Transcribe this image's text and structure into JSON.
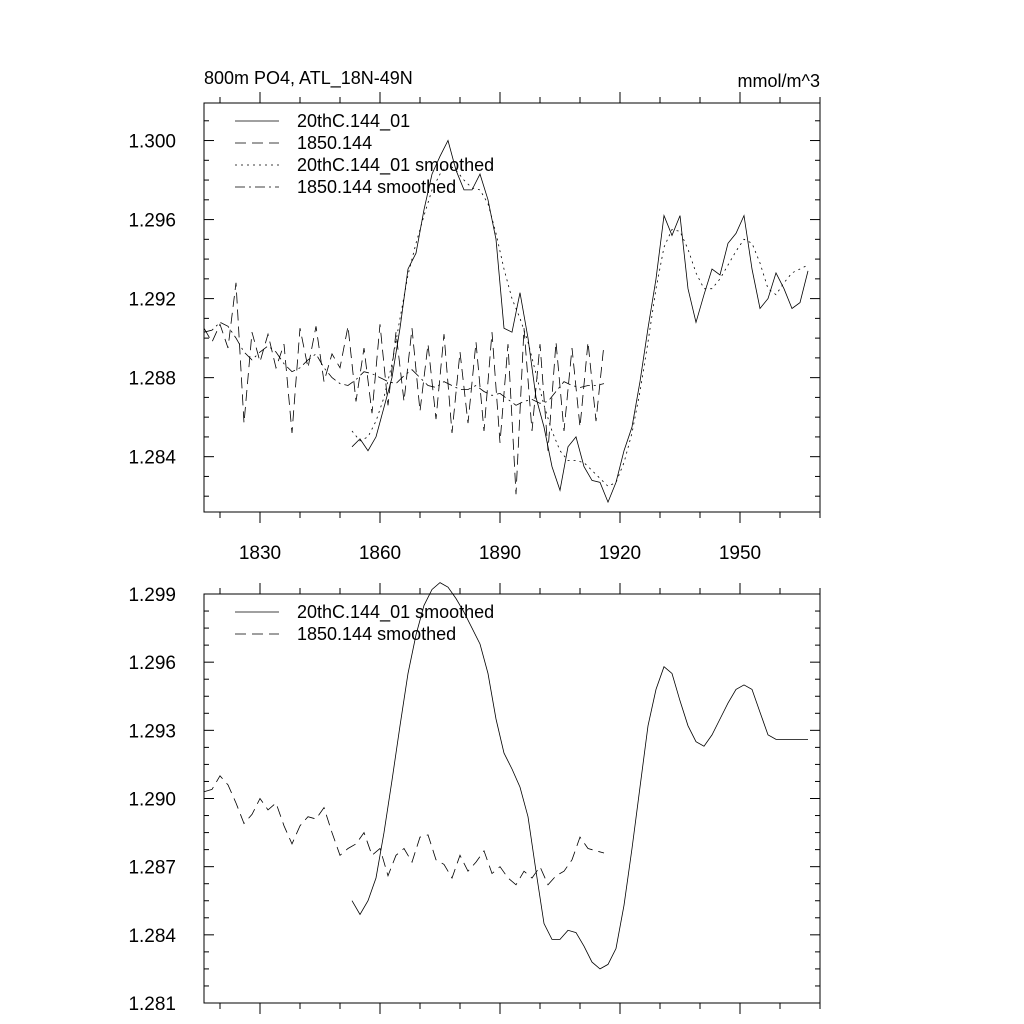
{
  "chart_data": [
    {
      "type": "line",
      "title": "800m PO4, ATL_18N-49N",
      "units": "mmol/m^3",
      "xlim": [
        1816,
        1970
      ],
      "ylim": [
        1.2812,
        1.3019
      ],
      "x_ticks": [
        1830,
        1860,
        1890,
        1920,
        1950
      ],
      "x_tick_labels": [
        "1830",
        "1860",
        "1890",
        "1920",
        "1950"
      ],
      "y_ticks": [
        1.284,
        1.288,
        1.292,
        1.296,
        1.3
      ],
      "y_tick_labels": [
        "1.284",
        "1.288",
        "1.292",
        "1.296",
        "1.300"
      ],
      "legend_position": "top-left",
      "series": [
        {
          "name": "20thC.144_01",
          "style": "solid",
          "x": [
            1853,
            1855,
            1857,
            1859,
            1861,
            1863,
            1865,
            1867,
            1869,
            1871,
            1873,
            1875,
            1877,
            1879,
            1881,
            1883,
            1885,
            1887,
            1889,
            1891,
            1893,
            1895,
            1897,
            1899,
            1901,
            1903,
            1905,
            1907,
            1909,
            1911,
            1913,
            1915,
            1917,
            1919,
            1921,
            1923,
            1925,
            1927,
            1929,
            1931,
            1933,
            1935,
            1937,
            1939,
            1941,
            1943,
            1945,
            1947,
            1949,
            1951,
            1953,
            1955,
            1957,
            1959,
            1961,
            1963,
            1965,
            1967
          ],
          "y": [
            1.2845,
            1.2849,
            1.2843,
            1.285,
            1.2865,
            1.288,
            1.2905,
            1.2935,
            1.2943,
            1.2965,
            1.2983,
            1.2992,
            1.3,
            1.2985,
            1.2975,
            1.2975,
            1.2983,
            1.297,
            1.295,
            1.2905,
            1.2903,
            1.2923,
            1.29,
            1.287,
            1.2855,
            1.2835,
            1.2823,
            1.2845,
            1.285,
            1.2835,
            1.2828,
            1.2827,
            1.2817,
            1.2827,
            1.2843,
            1.2855,
            1.2878,
            1.2905,
            1.293,
            1.2962,
            1.2952,
            1.2962,
            1.2925,
            1.2908,
            1.2922,
            1.2935,
            1.2932,
            1.2948,
            1.2953,
            1.2962,
            1.2935,
            1.2915,
            1.292,
            1.2933,
            1.2925,
            1.2915,
            1.2918,
            1.2934
          ]
        },
        {
          "name": "1850.144",
          "style": "dashed",
          "x": [
            1816,
            1818,
            1820,
            1822,
            1824,
            1826,
            1828,
            1830,
            1832,
            1834,
            1836,
            1838,
            1840,
            1842,
            1844,
            1846,
            1848,
            1850,
            1852,
            1854,
            1856,
            1858,
            1860,
            1862,
            1864,
            1866,
            1868,
            1870,
            1872,
            1874,
            1876,
            1878,
            1880,
            1882,
            1884,
            1886,
            1888,
            1890,
            1892,
            1894,
            1896,
            1898,
            1900,
            1902,
            1904,
            1906,
            1908,
            1910,
            1912,
            1914,
            1916
          ],
          "y": [
            1.2905,
            1.2898,
            1.2907,
            1.2895,
            1.2928,
            1.2857,
            1.2903,
            1.2888,
            1.2902,
            1.2885,
            1.2897,
            1.2852,
            1.2905,
            1.2885,
            1.2906,
            1.2878,
            1.2892,
            1.2885,
            1.2906,
            1.2868,
            1.2895,
            1.2862,
            1.2907,
            1.2866,
            1.2903,
            1.2868,
            1.2905,
            1.2863,
            1.2897,
            1.2859,
            1.2902,
            1.2852,
            1.2893,
            1.2857,
            1.2898,
            1.2853,
            1.2903,
            1.2847,
            1.2897,
            1.2821,
            1.2905,
            1.2853,
            1.2897,
            1.2843,
            1.2898,
            1.2853,
            1.2895,
            1.2855,
            1.2898,
            1.2858,
            1.2897
          ]
        },
        {
          "name": "20thC.144_01 smoothed",
          "style": "dotted",
          "x": [
            1853,
            1855,
            1857,
            1859,
            1861,
            1863,
            1865,
            1867,
            1869,
            1871,
            1873,
            1875,
            1877,
            1879,
            1881,
            1883,
            1885,
            1887,
            1889,
            1891,
            1893,
            1895,
            1897,
            1899,
            1901,
            1903,
            1905,
            1907,
            1909,
            1911,
            1913,
            1915,
            1917,
            1919,
            1921,
            1923,
            1925,
            1927,
            1929,
            1931,
            1933,
            1935,
            1937,
            1939,
            1941,
            1943,
            1945,
            1947,
            1949,
            1951,
            1953,
            1955,
            1957,
            1959,
            1961,
            1963,
            1965,
            1967
          ],
          "y": [
            1.2853,
            1.2848,
            1.285,
            1.2858,
            1.287,
            1.2887,
            1.291,
            1.2932,
            1.2948,
            1.2962,
            1.2975,
            1.2983,
            1.2988,
            1.2985,
            1.298,
            1.2976,
            1.2975,
            1.2968,
            1.2953,
            1.2935,
            1.292,
            1.291,
            1.2898,
            1.2882,
            1.2866,
            1.2853,
            1.2843,
            1.2838,
            1.2838,
            1.2837,
            1.2833,
            1.2829,
            1.2825,
            1.2827,
            1.2837,
            1.2852,
            1.2873,
            1.2898,
            1.2925,
            1.2946,
            1.2955,
            1.2954,
            1.2945,
            1.2933,
            1.2925,
            1.2925,
            1.293,
            1.2937,
            1.2944,
            1.295,
            1.2948,
            1.2938,
            1.2925,
            1.2922,
            1.2928,
            1.2933,
            1.2935,
            1.2937
          ]
        },
        {
          "name": "1850.144 smoothed",
          "style": "dashdot",
          "x": [
            1816,
            1818,
            1820,
            1822,
            1824,
            1826,
            1828,
            1830,
            1832,
            1834,
            1836,
            1838,
            1840,
            1842,
            1844,
            1846,
            1848,
            1850,
            1852,
            1854,
            1856,
            1858,
            1860,
            1862,
            1864,
            1866,
            1868,
            1870,
            1872,
            1874,
            1876,
            1878,
            1880,
            1882,
            1884,
            1886,
            1888,
            1890,
            1892,
            1894,
            1896,
            1898,
            1900,
            1902,
            1904,
            1906,
            1908,
            1910,
            1912,
            1914,
            1916
          ],
          "y": [
            1.2903,
            1.2904,
            1.2908,
            1.2906,
            1.29,
            1.2893,
            1.2889,
            1.2893,
            1.2896,
            1.2893,
            1.2887,
            1.2883,
            1.2885,
            1.2889,
            1.2892,
            1.2885,
            1.288,
            1.2877,
            1.2876,
            1.2879,
            1.2883,
            1.2882,
            1.288,
            1.2878,
            1.2877,
            1.2881,
            1.2884,
            1.288,
            1.2876,
            1.2875,
            1.2878,
            1.2876,
            1.2874,
            1.2874,
            1.2876,
            1.2873,
            1.2871,
            1.2872,
            1.2869,
            1.2866,
            1.2868,
            1.2869,
            1.2867,
            1.2868,
            1.2873,
            1.2878,
            1.2876,
            1.2875,
            1.2876,
            1.2876,
            1.2877
          ]
        }
      ]
    },
    {
      "type": "line",
      "xlim": [
        1816,
        1970
      ],
      "ylim": [
        1.281,
        1.299
      ],
      "x_ticks": [
        1830,
        1860,
        1890,
        1920,
        1950
      ],
      "y_ticks": [
        1.281,
        1.284,
        1.287,
        1.29,
        1.293,
        1.296,
        1.299
      ],
      "y_tick_labels": [
        "1.281",
        "1.284",
        "1.287",
        "1.290",
        "1.293",
        "1.296",
        "1.299"
      ],
      "legend_position": "top-left",
      "series": [
        {
          "name": "20thC.144_01 smoothed",
          "style": "solid",
          "x": [
            1853,
            1855,
            1857,
            1859,
            1861,
            1863,
            1865,
            1867,
            1869,
            1871,
            1873,
            1875,
            1877,
            1879,
            1881,
            1883,
            1885,
            1887,
            1889,
            1891,
            1893,
            1895,
            1897,
            1899,
            1901,
            1903,
            1905,
            1907,
            1909,
            1911,
            1913,
            1915,
            1917,
            1919,
            1921,
            1923,
            1925,
            1927,
            1929,
            1931,
            1933,
            1935,
            1937,
            1939,
            1941,
            1943,
            1945,
            1947,
            1949,
            1951,
            1953,
            1955,
            1957,
            1959,
            1961,
            1963,
            1965,
            1967
          ],
          "y": [
            1.2855,
            1.2849,
            1.2855,
            1.2865,
            1.2885,
            1.2908,
            1.2932,
            1.2955,
            1.2972,
            1.2985,
            1.2992,
            1.2995,
            1.2993,
            1.2988,
            1.2982,
            1.2975,
            1.2968,
            1.2955,
            1.2935,
            1.292,
            1.2913,
            1.2905,
            1.2892,
            1.2868,
            1.2845,
            1.2838,
            1.2838,
            1.2842,
            1.2841,
            1.2835,
            1.2828,
            1.2825,
            1.2827,
            1.2834,
            1.2853,
            1.2878,
            1.2905,
            1.2932,
            1.2948,
            1.2958,
            1.2955,
            1.2943,
            1.2932,
            1.2925,
            1.2923,
            1.2928,
            1.2935,
            1.2942,
            1.2948,
            1.295,
            1.2948,
            1.2938,
            1.2928,
            1.2926,
            1.2926,
            1.2926,
            1.2926,
            1.2926
          ]
        },
        {
          "name": "1850.144 smoothed",
          "style": "dashed",
          "x": [
            1816,
            1818,
            1820,
            1822,
            1824,
            1826,
            1828,
            1830,
            1832,
            1834,
            1836,
            1838,
            1840,
            1842,
            1844,
            1846,
            1848,
            1850,
            1852,
            1854,
            1856,
            1858,
            1860,
            1862,
            1864,
            1866,
            1868,
            1870,
            1872,
            1874,
            1876,
            1878,
            1880,
            1882,
            1884,
            1886,
            1888,
            1890,
            1892,
            1894,
            1896,
            1898,
            1900,
            1902,
            1904,
            1906,
            1908,
            1910,
            1912,
            1914,
            1916
          ],
          "y": [
            1.2903,
            1.2904,
            1.291,
            1.2906,
            1.2898,
            1.2889,
            1.2893,
            1.29,
            1.2895,
            1.2898,
            1.2888,
            1.288,
            1.2888,
            1.2892,
            1.2891,
            1.2896,
            1.2885,
            1.2875,
            1.2878,
            1.288,
            1.2885,
            1.2875,
            1.2878,
            1.2866,
            1.2875,
            1.2878,
            1.2872,
            1.2883,
            1.2884,
            1.2873,
            1.2871,
            1.2865,
            1.2875,
            1.2868,
            1.2872,
            1.2877,
            1.2867,
            1.287,
            1.2865,
            1.2862,
            1.2868,
            1.2865,
            1.287,
            1.2862,
            1.2866,
            1.2868,
            1.2873,
            1.2883,
            1.2878,
            1.2877,
            1.2876
          ]
        }
      ]
    }
  ]
}
